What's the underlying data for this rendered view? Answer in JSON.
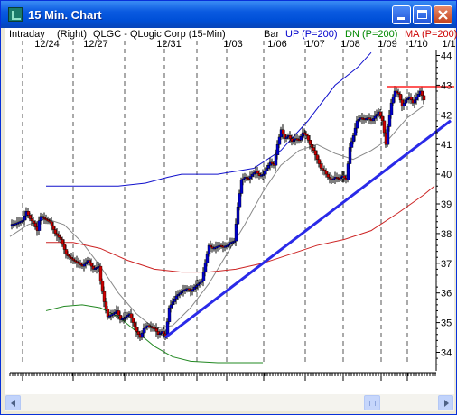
{
  "window": {
    "title": "15 Min. Chart",
    "icon": "chart-app-icon"
  },
  "colors": {
    "up_bar": "#0000cc",
    "down_bar": "#cc0000",
    "wick": "#000000",
    "upper_band": "#1010cc",
    "middle_ma": "#888888",
    "ma_200": "#cc2222",
    "lower_band": "#228822",
    "trendline": "#2a2ae8",
    "resistance_line": "#ff2020",
    "label_blue": "#0000cc",
    "label_green": "#008800",
    "label_red": "#cc0000"
  },
  "chart_data": {
    "type": "candlestick",
    "header": {
      "mode": "Intraday",
      "scale": "(Right)",
      "symbol": "QLGC - QLogic Corp (15-Min)",
      "bar_label": "Bar",
      "up_label": "UP (P=200)",
      "dn_label": "DN (P=200)",
      "ma_label": "MA (P=200)"
    },
    "date_labels": [
      "12/24",
      "12/27",
      "12/31",
      "1/03",
      "1/06",
      "1/07",
      "1/08",
      "1/09",
      "1/10",
      "1/1"
    ],
    "y_ticks": [
      "44",
      "43",
      "42",
      "41",
      "40",
      "39",
      "38",
      "37",
      "36",
      "35",
      "34"
    ],
    "ylim": [
      33.5,
      44.5
    ],
    "price_path": [
      [
        0,
        38.3
      ],
      [
        7,
        38.35
      ],
      [
        14,
        38.45
      ],
      [
        18,
        38.75
      ],
      [
        22,
        38.5
      ],
      [
        26,
        38.35
      ],
      [
        30,
        38.1
      ],
      [
        33,
        38.6
      ],
      [
        38,
        38.5
      ],
      [
        44,
        38.4
      ],
      [
        50,
        38.0
      ],
      [
        56,
        37.8
      ],
      [
        62,
        37.3
      ],
      [
        66,
        37.2
      ],
      [
        70,
        37.1
      ],
      [
        76,
        37.0
      ],
      [
        80,
        36.9
      ],
      [
        86,
        37.1
      ],
      [
        92,
        36.8
      ],
      [
        98,
        36.9
      ],
      [
        100,
        36.4
      ],
      [
        104,
        35.7
      ],
      [
        108,
        35.2
      ],
      [
        114,
        35.3
      ],
      [
        118,
        35.4
      ],
      [
        122,
        35.1
      ],
      [
        128,
        35.2
      ],
      [
        132,
        35.3
      ],
      [
        136,
        35.0
      ],
      [
        140,
        34.7
      ],
      [
        144,
        34.5
      ],
      [
        148,
        34.8
      ],
      [
        152,
        34.9
      ],
      [
        156,
        34.85
      ],
      [
        160,
        34.8
      ],
      [
        164,
        34.6
      ],
      [
        168,
        34.7
      ],
      [
        172,
        34.55
      ],
      [
        176,
        35.5
      ],
      [
        180,
        35.7
      ],
      [
        184,
        35.9
      ],
      [
        188,
        36.0
      ],
      [
        192,
        36.1
      ],
      [
        196,
        36.15
      ],
      [
        200,
        36.05
      ],
      [
        204,
        36.2
      ],
      [
        208,
        36.3
      ],
      [
        212,
        36.4
      ],
      [
        216,
        37.0
      ],
      [
        220,
        37.6
      ],
      [
        224,
        37.5
      ],
      [
        228,
        37.55
      ],
      [
        232,
        37.6
      ],
      [
        236,
        37.55
      ],
      [
        240,
        37.6
      ],
      [
        244,
        37.7
      ],
      [
        248,
        37.75
      ],
      [
        252,
        38.9
      ],
      [
        256,
        39.8
      ],
      [
        260,
        39.9
      ],
      [
        264,
        39.85
      ],
      [
        268,
        40.0
      ],
      [
        272,
        40.1
      ],
      [
        276,
        39.95
      ],
      [
        280,
        40.0
      ],
      [
        284,
        40.2
      ],
      [
        288,
        40.4
      ],
      [
        292,
        40.3
      ],
      [
        296,
        41.0
      ],
      [
        300,
        41.5
      ],
      [
        304,
        41.2
      ],
      [
        308,
        41.3
      ],
      [
        312,
        41.1
      ],
      [
        316,
        41.2
      ],
      [
        320,
        41.15
      ],
      [
        324,
        41.4
      ],
      [
        328,
        41.3
      ],
      [
        332,
        41.0
      ],
      [
        336,
        40.8
      ],
      [
        340,
        40.5
      ],
      [
        344,
        40.2
      ],
      [
        348,
        40.1
      ],
      [
        352,
        39.9
      ],
      [
        356,
        39.8
      ],
      [
        360,
        39.9
      ],
      [
        364,
        39.85
      ],
      [
        368,
        39.95
      ],
      [
        372,
        39.8
      ],
      [
        376,
        40.9
      ],
      [
        380,
        41.3
      ],
      [
        384,
        41.8
      ],
      [
        388,
        41.9
      ],
      [
        392,
        41.85
      ],
      [
        396,
        41.9
      ],
      [
        400,
        41.8
      ],
      [
        404,
        41.95
      ],
      [
        408,
        42.1
      ],
      [
        412,
        41.8
      ],
      [
        416,
        41.0
      ],
      [
        418,
        41.6
      ],
      [
        422,
        42.4
      ],
      [
        426,
        42.8
      ],
      [
        430,
        42.7
      ],
      [
        434,
        42.3
      ],
      [
        438,
        42.5
      ],
      [
        442,
        42.6
      ],
      [
        446,
        42.4
      ],
      [
        450,
        42.6
      ],
      [
        454,
        42.8
      ],
      [
        458,
        42.5
      ]
    ],
    "overlays": {
      "upper_band": [
        [
          40,
          39.6
        ],
        [
          80,
          39.6
        ],
        [
          120,
          39.6
        ],
        [
          150,
          39.7
        ],
        [
          175,
          39.9
        ],
        [
          190,
          40.0
        ],
        [
          230,
          40.0
        ],
        [
          270,
          40.2
        ],
        [
          300,
          40.8
        ],
        [
          330,
          41.8
        ],
        [
          360,
          43.0
        ],
        [
          385,
          43.6
        ],
        [
          400,
          44.1
        ]
      ],
      "middle_ma": [
        [
          0,
          37.9
        ],
        [
          20,
          38.3
        ],
        [
          40,
          38.5
        ],
        [
          60,
          38.3
        ],
        [
          80,
          37.7
        ],
        [
          100,
          36.9
        ],
        [
          120,
          36.0
        ],
        [
          140,
          35.3
        ],
        [
          160,
          34.8
        ],
        [
          180,
          34.9
        ],
        [
          200,
          35.5
        ],
        [
          220,
          36.3
        ],
        [
          240,
          37.3
        ],
        [
          260,
          38.3
        ],
        [
          280,
          39.4
        ],
        [
          300,
          40.3
        ],
        [
          320,
          40.8
        ],
        [
          340,
          41.0
        ],
        [
          360,
          40.7
        ],
        [
          380,
          40.5
        ],
        [
          400,
          40.8
        ],
        [
          420,
          41.2
        ],
        [
          440,
          41.9
        ],
        [
          458,
          42.3
        ]
      ],
      "ma_200": [
        [
          40,
          37.7
        ],
        [
          70,
          37.7
        ],
        [
          100,
          37.5
        ],
        [
          130,
          37.1
        ],
        [
          160,
          36.8
        ],
        [
          190,
          36.7
        ],
        [
          220,
          36.7
        ],
        [
          250,
          36.8
        ],
        [
          280,
          37.0
        ],
        [
          310,
          37.3
        ],
        [
          340,
          37.6
        ],
        [
          370,
          37.8
        ],
        [
          400,
          38.1
        ],
        [
          430,
          38.7
        ],
        [
          458,
          39.3
        ],
        [
          470,
          39.6
        ]
      ],
      "lower_band": [
        [
          40,
          35.4
        ],
        [
          60,
          35.55
        ],
        [
          80,
          35.6
        ],
        [
          100,
          35.5
        ],
        [
          120,
          35.2
        ],
        [
          140,
          34.7
        ],
        [
          160,
          34.2
        ],
        [
          180,
          33.85
        ],
        [
          200,
          33.7
        ],
        [
          230,
          33.65
        ],
        [
          280,
          33.65
        ]
      ]
    },
    "trendlines": {
      "support": [
        [
          172,
          34.5
        ],
        [
          458,
          41.5
        ]
      ],
      "resistance_level": 42.95,
      "resistance_from_x": 418
    },
    "grid": "vertical dashed at session starts",
    "axis_side": "right"
  }
}
